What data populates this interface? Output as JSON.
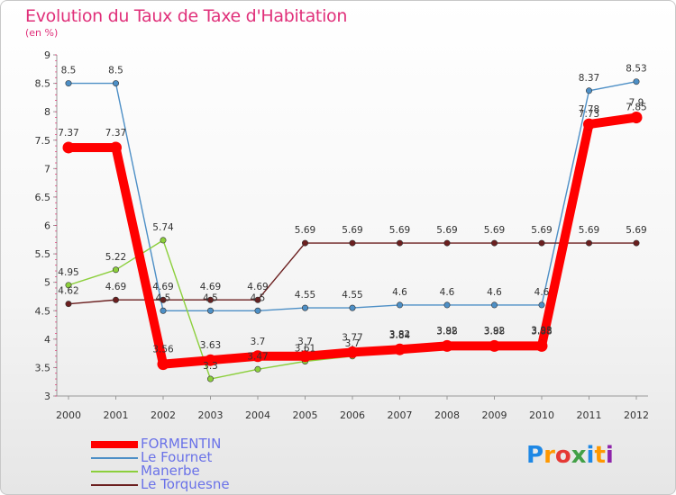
{
  "title": "Evolution du Taux de Taxe d'Habitation",
  "subtitle": "(en %)",
  "logo": {
    "text": "Proxiti",
    "colors": [
      "#1e88e5",
      "#ff9800",
      "#e53935",
      "#43a047",
      "#1e88e5",
      "#ff9800",
      "#8e24aa"
    ]
  },
  "chart_data": {
    "type": "line",
    "title": "Evolution du Taux de Taxe d'Habitation",
    "subtitle": "(en %)",
    "xlabel": "",
    "ylabel": "",
    "ylim": [
      3,
      9
    ],
    "yticks": [
      "3",
      "3.5",
      "4",
      "4.5",
      "5",
      "5.5",
      "6",
      "6.5",
      "7",
      "7.5",
      "8",
      "8.5",
      "9"
    ],
    "x": [
      "2000",
      "2001",
      "2002",
      "2003",
      "2004",
      "2005",
      "2006",
      "2007",
      "2008",
      "2009",
      "2010",
      "2011",
      "2012"
    ],
    "grid": false,
    "legend_position": "bottom-left",
    "series": [
      {
        "name": "FORMENTIN",
        "color": "#ff0000",
        "values": [
          7.37,
          7.37,
          3.56,
          3.63,
          3.7,
          3.7,
          3.77,
          3.82,
          3.88,
          3.88,
          3.88,
          7.78,
          7.9
        ],
        "labels": [
          "7.37",
          "7.37",
          "3.56",
          "3.63",
          "3.7",
          "3.7",
          "3.77",
          "3.82",
          "3.88",
          "3.88",
          "3.88",
          "7.78",
          "7.9"
        ]
      },
      {
        "name": "Le Fournet",
        "color": "#4d8fc6",
        "values": [
          8.5,
          8.5,
          4.5,
          4.5,
          4.5,
          4.55,
          4.55,
          4.6,
          4.6,
          4.6,
          4.6,
          8.37,
          8.53
        ],
        "labels": [
          "8.5",
          "8.5",
          "4.5",
          "4.5",
          "4.5",
          "4.55",
          "4.55",
          "4.6",
          "4.6",
          "4.6",
          "4.6",
          "8.37",
          "8.53"
        ]
      },
      {
        "name": "Manerbe",
        "color": "#8ccf3c",
        "values": [
          4.95,
          5.22,
          5.74,
          3.3,
          3.47,
          3.61,
          3.7,
          3.84,
          3.92,
          3.92,
          3.93,
          7.73,
          7.85
        ],
        "labels": [
          "4.95",
          "5.22",
          "5.74",
          "3.3",
          "3.47",
          "3.61",
          "3.7",
          "3.84",
          "3.92",
          "3.92",
          "3.93",
          "7.73",
          "7.85"
        ]
      },
      {
        "name": "Le Torquesne",
        "color": "#6b1f1f",
        "values": [
          4.62,
          4.69,
          4.69,
          4.69,
          4.69,
          5.69,
          5.69,
          5.69,
          5.69,
          5.69,
          5.69,
          5.69,
          5.69
        ],
        "labels": [
          "4.62",
          "4.69",
          "4.69",
          "4.69",
          "4.69",
          "5.69",
          "5.69",
          "5.69",
          "5.69",
          "5.69",
          "5.69",
          "5.69",
          "5.69"
        ]
      }
    ]
  }
}
